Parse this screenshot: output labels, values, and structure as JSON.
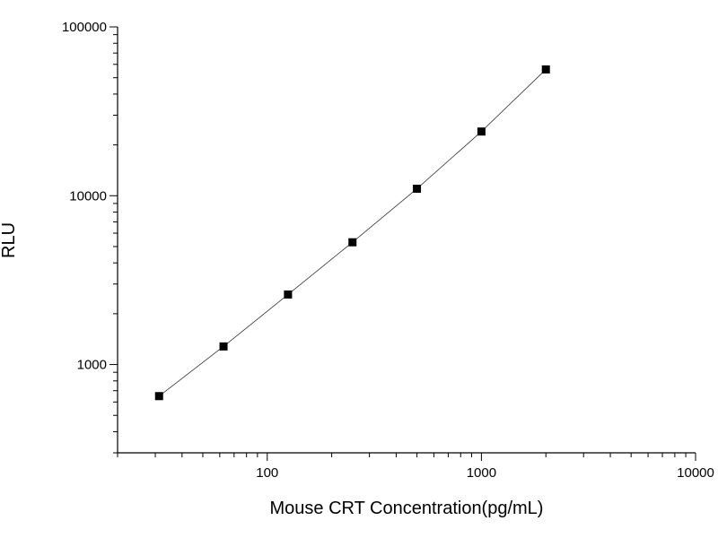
{
  "chart_data": {
    "type": "scatter",
    "title": "",
    "xlabel": "Mouse CRT Concentration(pg/mL)",
    "ylabel": "RLU",
    "x_scale": "log",
    "y_scale": "log",
    "xlim": [
      20,
      10000
    ],
    "ylim": [
      300,
      100000
    ],
    "x_ticks": [
      100,
      1000,
      10000
    ],
    "x_tick_labels": [
      "100",
      "1000",
      "10000"
    ],
    "y_ticks": [
      1000,
      10000,
      100000
    ],
    "y_tick_labels": [
      "1000",
      "10000",
      "100000"
    ],
    "grid": false,
    "legend": "none",
    "series": [
      {
        "x": [
          31.25,
          62.5,
          125,
          250,
          500,
          1000,
          2000
        ],
        "y": [
          650,
          1280,
          2600,
          5300,
          11000,
          24000,
          56000
        ],
        "marker": "square",
        "connected": true,
        "color": "#000000"
      }
    ]
  }
}
